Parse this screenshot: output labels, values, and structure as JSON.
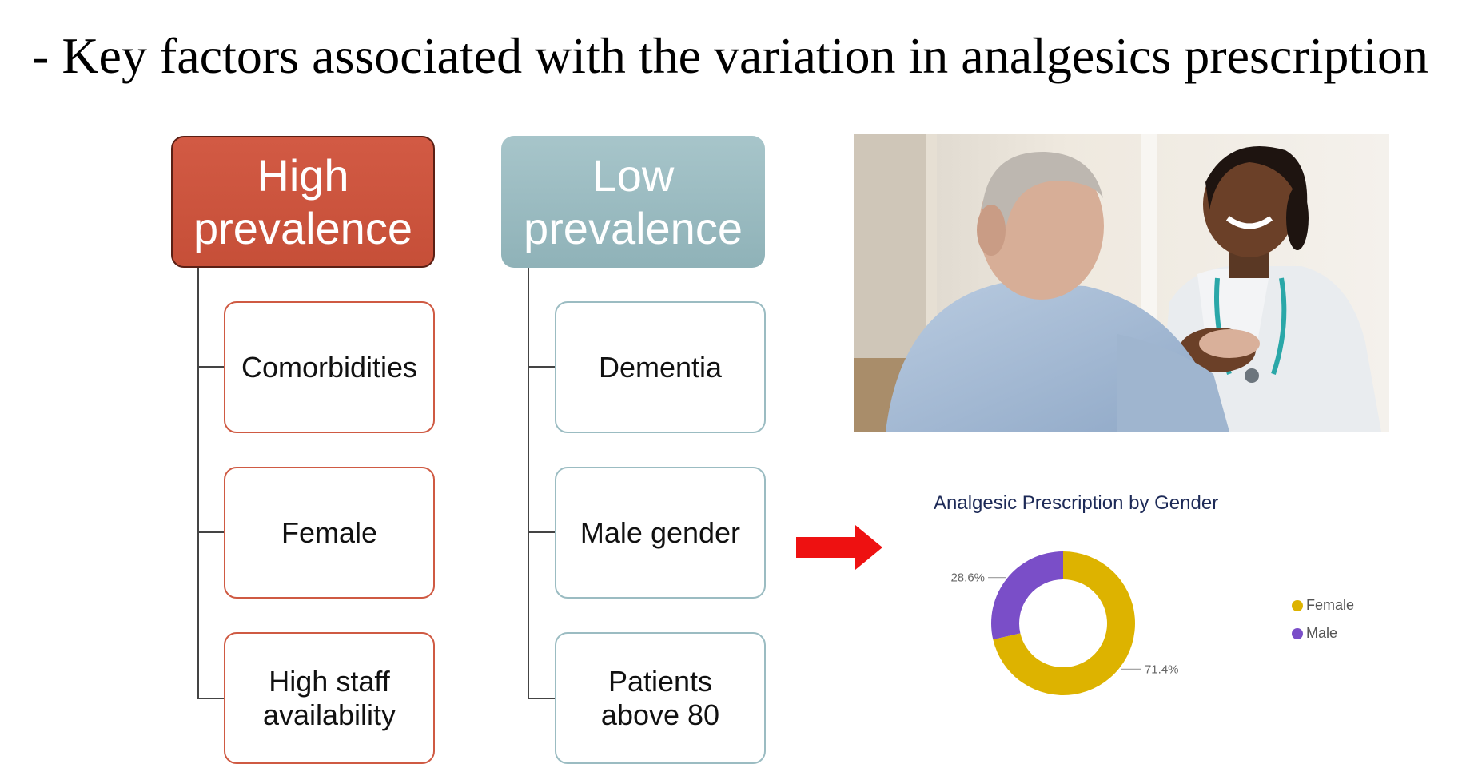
{
  "title": "- Key factors associated with the variation in analgesics prescription",
  "diagram": {
    "high": {
      "label": "High\nprevalence",
      "items": [
        "Comorbidities",
        "Female",
        "High staff\navailability"
      ]
    },
    "low": {
      "label": "Low\nprevalence",
      "items": [
        "Dementia",
        "Male gender",
        "Patients\nabove 80"
      ]
    }
  },
  "photo": {
    "icon": "caregiver-patient-photo"
  },
  "arrow": {
    "icon": "right-arrow-icon",
    "color": "#ee1111"
  },
  "chart_data": {
    "type": "pie",
    "style": "donut",
    "title": "Analgesic Prescription by Gender",
    "categories": [
      "Female",
      "Male"
    ],
    "values": [
      71.4,
      28.6
    ],
    "data_labels": [
      "71.4%",
      "28.6%"
    ],
    "unit": "%",
    "colors": [
      "#ddb300",
      "#7a4ec8"
    ],
    "legend_placement": "right"
  }
}
